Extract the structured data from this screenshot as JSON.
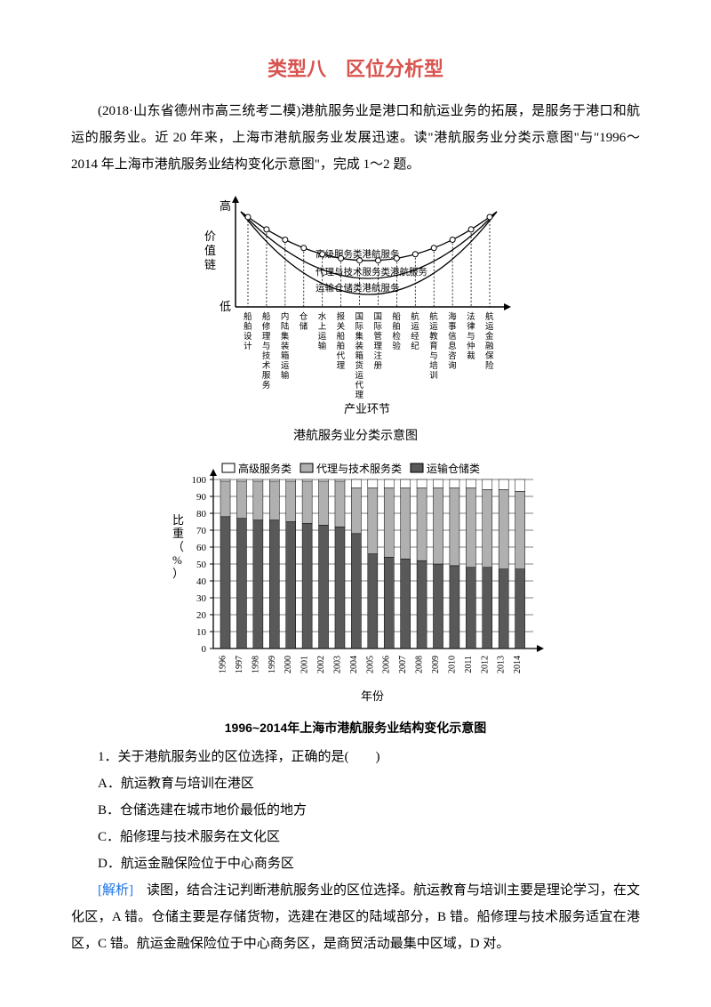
{
  "title": "类型八　区位分析型",
  "intro": "(2018·山东省德州市高三统考二模)港航服务业是港口和航运业务的拓展，是服务于港口和航运的服务业。近 20 年来，上海市港航服务业发展迅速。读\"港航服务业分类示意图\"与\"1996～2014 年上海市港航服务业结构变化示意图\"，完成 1～2 题。",
  "chart1": {
    "caption": "港航服务业分类示意图",
    "y_axis": "价值链",
    "y_top": "高",
    "y_bottom": "低",
    "x_axis": "产业环节",
    "curves": [
      {
        "label": "高级服务类港航服务",
        "color": "#000"
      },
      {
        "label": "代理与技术服务类港航服务",
        "color": "#000"
      },
      {
        "label": "运输仓储类港航服务",
        "color": "#000"
      }
    ],
    "categories": [
      "船舶设计",
      "船修理与技术服务",
      "内陆集装箱运输",
      "仓储",
      "水上运输",
      "报关船舶代理",
      "国际集装箱货运代理",
      "国际管理注册",
      "船舶检验",
      "航运经纪",
      "航运教育与培训",
      "海事信息咨询",
      "法律与仲裁",
      "航运金融保险"
    ],
    "background_color": "#ffffff",
    "line_color": "#000000"
  },
  "chart2": {
    "caption": "1996~2014年上海市港航服务业结构变化示意图",
    "y_axis": "比重（%）",
    "x_axis": "年份",
    "legend": [
      "高级服务类",
      "代理与技术服务类",
      "运输仓储类"
    ],
    "legend_colors": [
      "#ffffff",
      "#b0b0b0",
      "#595959"
    ],
    "ylim": [
      0,
      100
    ],
    "ytick_step": 10,
    "years": [
      1996,
      1997,
      1998,
      1999,
      2000,
      2001,
      2002,
      2003,
      2004,
      2005,
      2006,
      2007,
      2008,
      2009,
      2010,
      2011,
      2012,
      2013,
      2014
    ],
    "series": {
      "transport": [
        78,
        77,
        76,
        76,
        75,
        74,
        73,
        72,
        68,
        56,
        54,
        53,
        52,
        50,
        49,
        48,
        48,
        47,
        47
      ],
      "agency": [
        21,
        22,
        23,
        23,
        24,
        25,
        26,
        27,
        27,
        39,
        41,
        42,
        43,
        45,
        46,
        47,
        46,
        47,
        46
      ],
      "premium": [
        1,
        1,
        1,
        1,
        1,
        1,
        1,
        1,
        5,
        5,
        5,
        5,
        5,
        5,
        5,
        5,
        6,
        6,
        7
      ]
    },
    "border_color": "#000000",
    "grid_color": "#000000",
    "background_color": "#ffffff",
    "bar_width": 0.6
  },
  "question1": {
    "stem": "1．关于港航服务业的区位选择，正确的是(　　)",
    "options": [
      "A．航运教育与培训在港区",
      "B．仓储选建在城市地价最低的地方",
      "C．船修理与技术服务在文化区",
      "D．航运金融保险位于中心商务区"
    ]
  },
  "explain_label": "[解析]",
  "explain_text": "　读图，结合注记判断港航服务业的区位选择。航运教育与培训主要是理论学习，在文化区，A 错。仓储主要是存储货物，选建在港区的陆域部分，B 错。船修理与技术服务适宜在港区，C 错。航运金融保险位于中心商务区，是商贸活动最集中区域，D 对。",
  "colors": {
    "title_red": "#d9534f",
    "link_blue": "#1a73e8",
    "text": "#000000"
  }
}
